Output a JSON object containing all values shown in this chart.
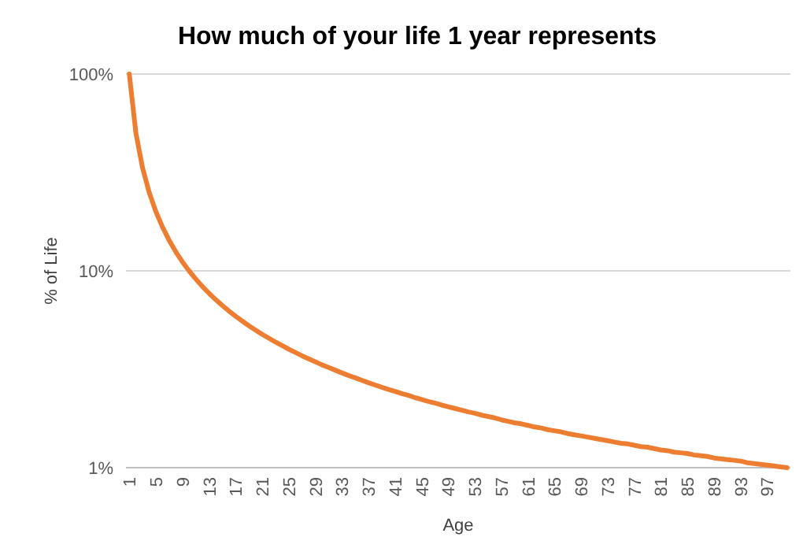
{
  "chart_data": {
    "type": "line",
    "title": "How much of your life 1 year represents",
    "xlabel": "Age",
    "ylabel": "% of Life",
    "categories": [
      "1",
      null,
      null,
      null,
      "5",
      null,
      null,
      null,
      "9",
      null,
      null,
      null,
      "13",
      null,
      null,
      null,
      "17",
      null,
      null,
      null,
      "21",
      null,
      null,
      null,
      "25",
      null,
      null,
      null,
      "29",
      null,
      null,
      null,
      "33",
      null,
      null,
      null,
      "37",
      null,
      null,
      null,
      "41",
      null,
      null,
      null,
      "45",
      null,
      null,
      null,
      "49",
      null,
      null,
      null,
      "53",
      null,
      null,
      null,
      "57",
      null,
      null,
      null,
      "61",
      null,
      null,
      null,
      "65",
      null,
      null,
      null,
      "69",
      null,
      null,
      null,
      "73",
      null,
      null,
      null,
      "77",
      null,
      null,
      null,
      "81",
      null,
      null,
      null,
      "85",
      null,
      null,
      null,
      "89",
      null,
      null,
      null,
      "93",
      null,
      null,
      null,
      "97",
      null,
      null,
      null
    ],
    "series": [
      {
        "color": "#ed7d31",
        "values": [
          100,
          50,
          33.3,
          25,
          20,
          16.7,
          14.3,
          12.5,
          11.1,
          10,
          9.09,
          8.33,
          7.69,
          7.14,
          6.67,
          6.25,
          5.88,
          5.56,
          5.26,
          5,
          4.76,
          4.55,
          4.35,
          4.17,
          4,
          3.85,
          3.7,
          3.57,
          3.45,
          3.33,
          3.23,
          3.13,
          3.03,
          2.94,
          2.86,
          2.78,
          2.7,
          2.63,
          2.56,
          2.5,
          2.44,
          2.38,
          2.33,
          2.27,
          2.22,
          2.17,
          2.13,
          2.08,
          2.04,
          2,
          1.96,
          1.92,
          1.89,
          1.85,
          1.82,
          1.79,
          1.75,
          1.72,
          1.69,
          1.67,
          1.64,
          1.61,
          1.59,
          1.56,
          1.54,
          1.52,
          1.49,
          1.47,
          1.45,
          1.43,
          1.41,
          1.39,
          1.37,
          1.35,
          1.33,
          1.32,
          1.3,
          1.28,
          1.27,
          1.25,
          1.23,
          1.22,
          1.2,
          1.19,
          1.18,
          1.16,
          1.15,
          1.14,
          1.12,
          1.11,
          1.1,
          1.09,
          1.08,
          1.06,
          1.05,
          1.04,
          1.03,
          1.02,
          1.01,
          1
        ]
      }
    ],
    "log": "y",
    "ylim": [
      1,
      100
    ],
    "yticks": [
      {
        "value": 1,
        "label": "1%"
      },
      {
        "value": 10,
        "label": "10%"
      },
      {
        "value": 100,
        "label": "100%"
      }
    ],
    "grid": "y",
    "marker": "none",
    "line_style": "solid"
  }
}
